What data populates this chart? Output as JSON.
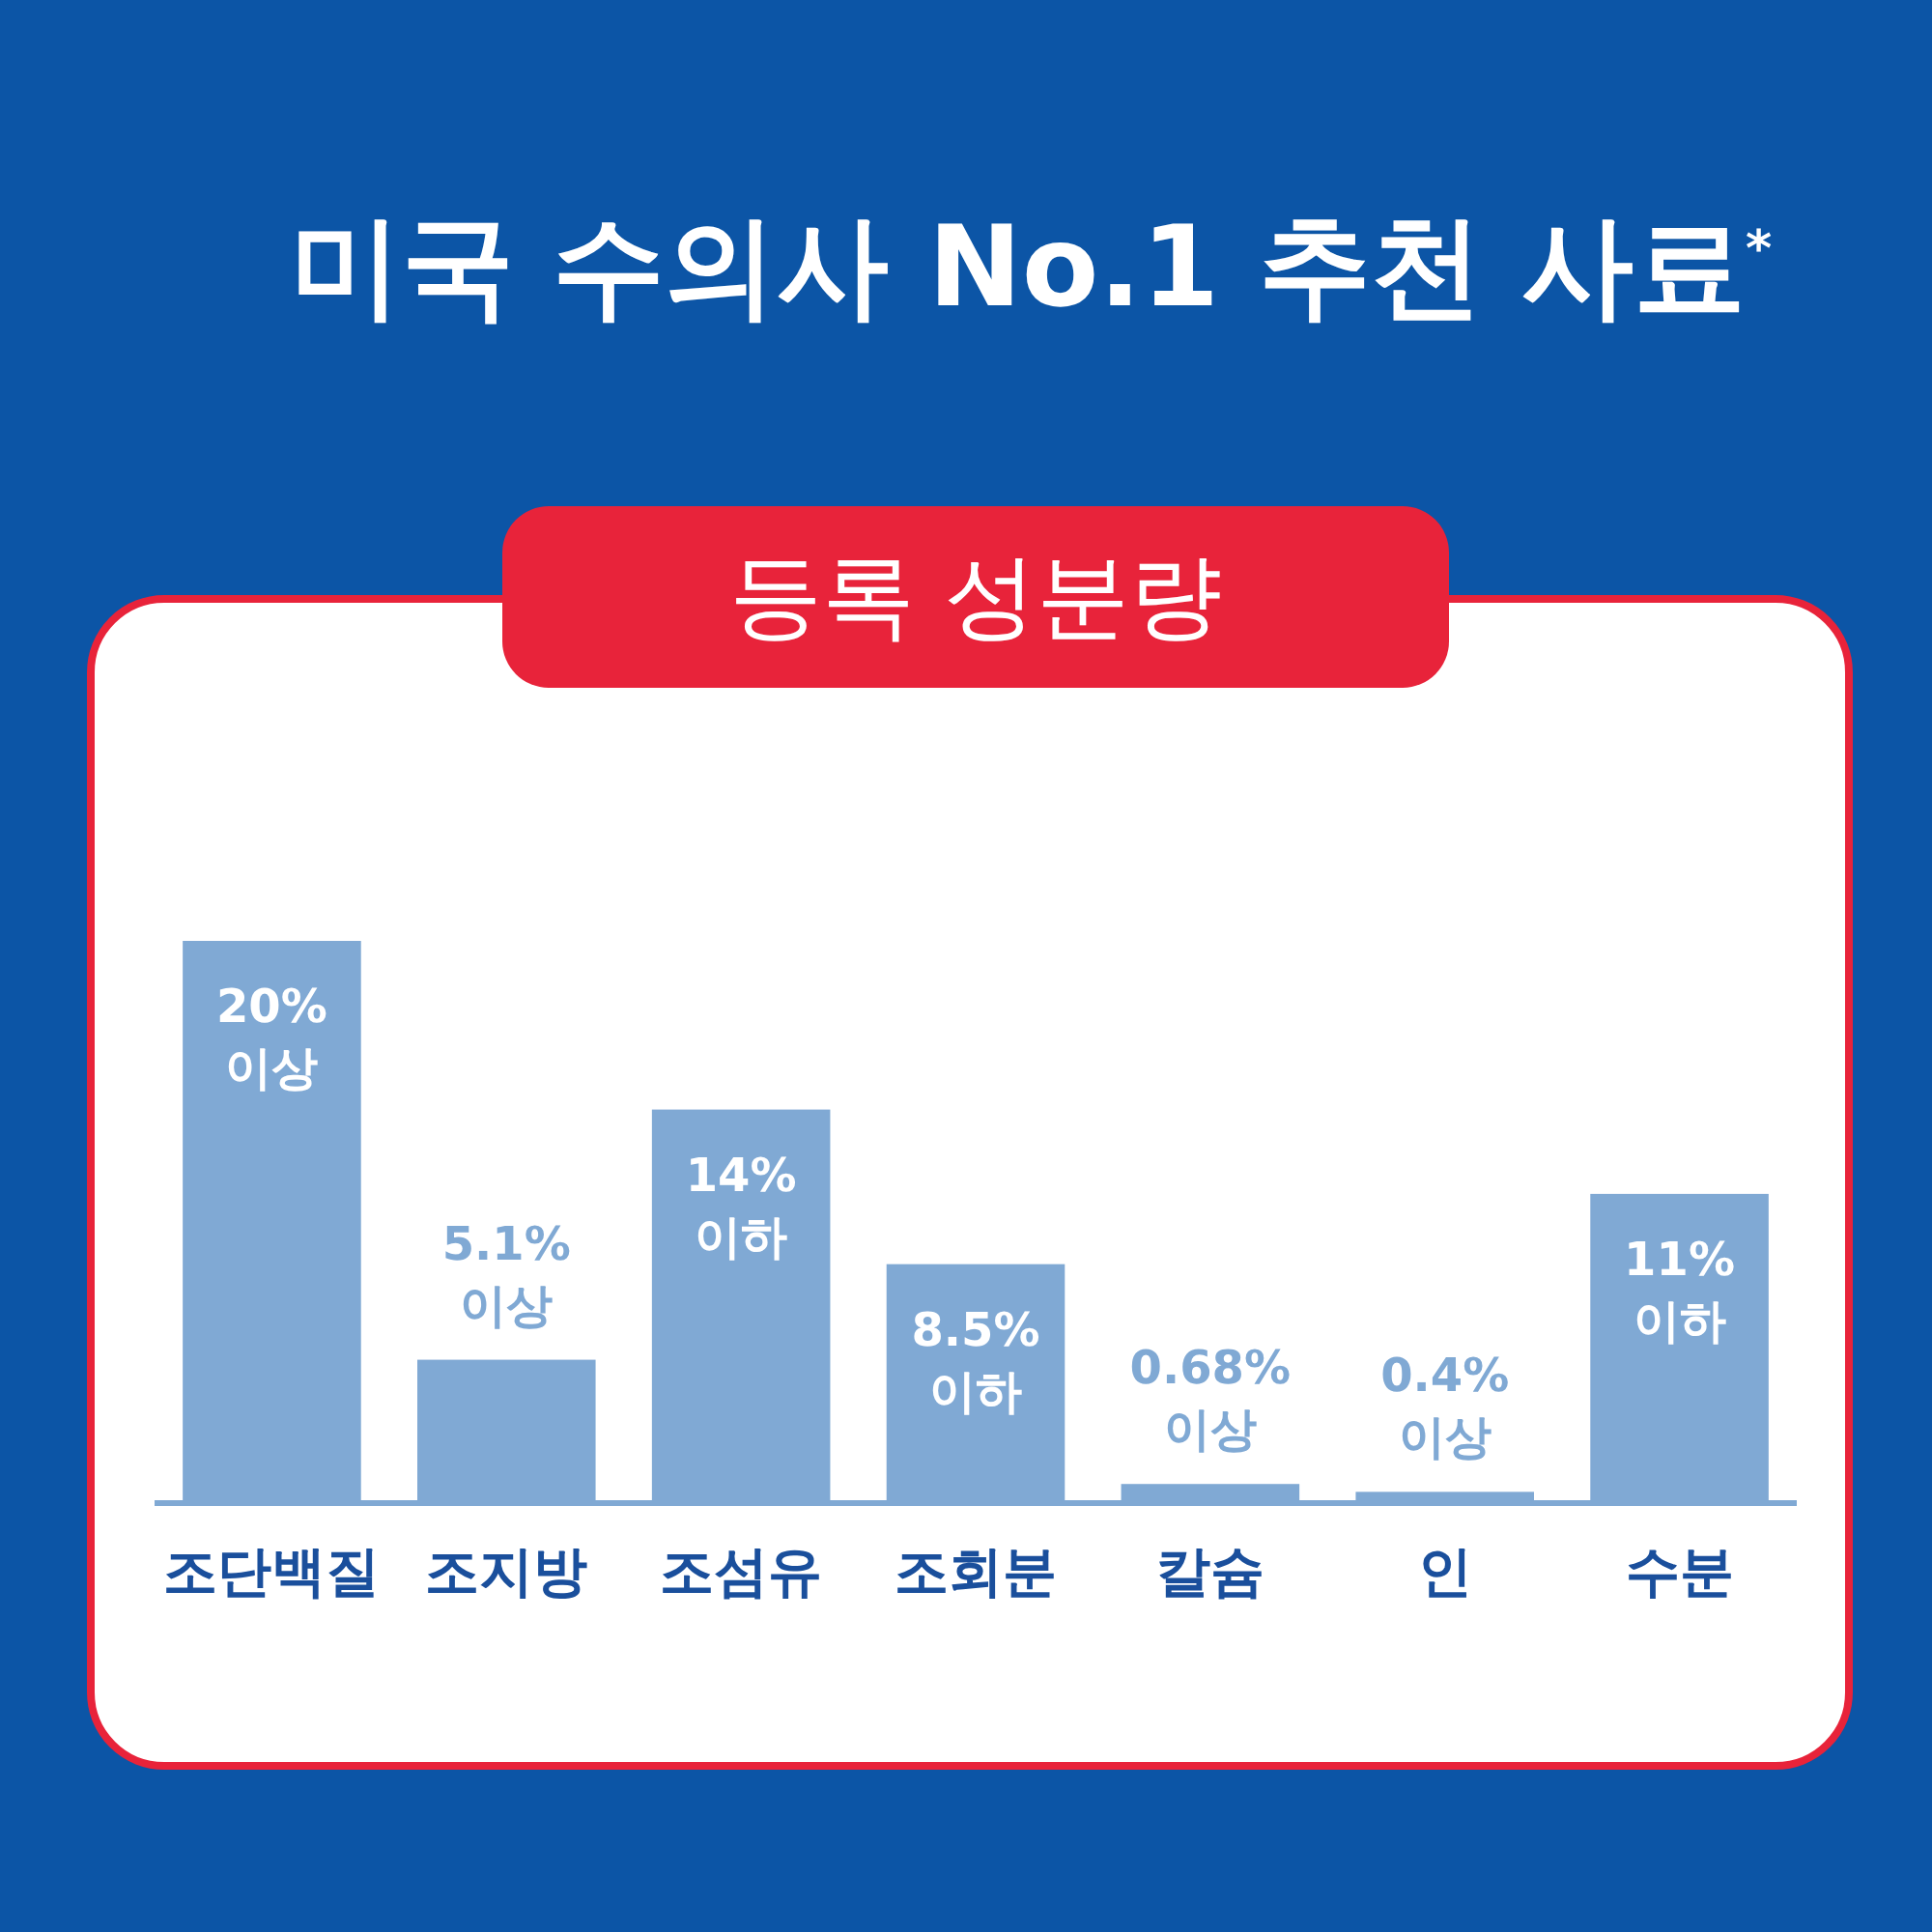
{
  "chart_data": {
    "type": "bar",
    "title": "미국 수의사 No.1 추천 사료$^{*}$",
    "subtitle": "등록 성분량",
    "categories": [
      "조단백질",
      "조지방",
      "조섬유",
      "조회분",
      "칼슘",
      "인",
      "수분"
    ],
    "values": [
      20,
      5.1,
      14,
      8.5,
      0.68,
      0.4,
      11
    ],
    "value_labels": [
      "20%\n이상",
      "5.1%\n이상",
      "14%\n이하",
      "8.5%\n이하",
      "0.68%\n이상",
      "0.4%\n이상",
      "11%\n이하"
    ],
    "color": "#80a9d4"
  }
}
